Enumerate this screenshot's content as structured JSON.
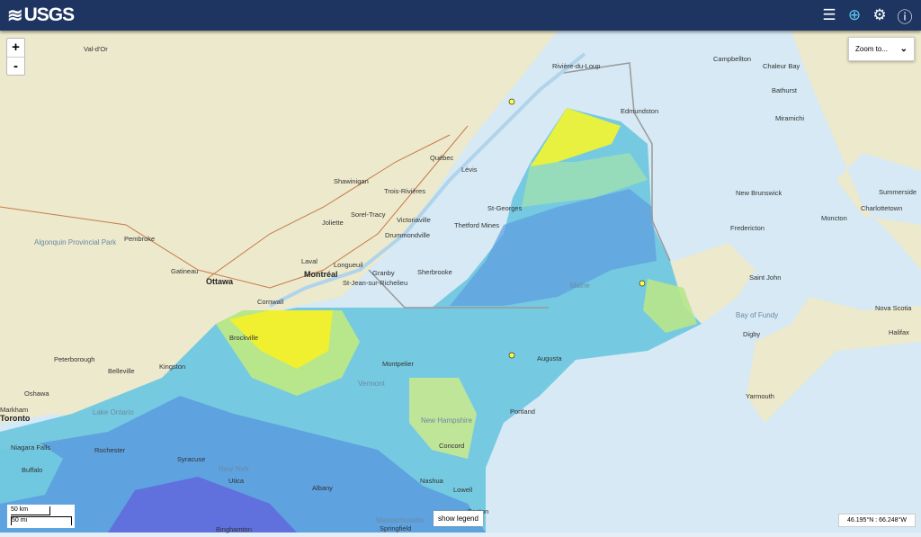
{
  "header": {
    "logo": "USGS",
    "icons": [
      "list-icon",
      "globe-icon",
      "gear-icon",
      "help-icon"
    ]
  },
  "controls": {
    "zoom_in": "+",
    "zoom_out": "-",
    "zoom_to": "Zoom to...",
    "show_legend": "show legend",
    "scale_km": "50 km",
    "scale_mi": "50 mi",
    "coords": "46.195°N : 66.248°W"
  },
  "colors": {
    "land": "#ece9cc",
    "water": "#d6e9f4",
    "yellow": "#f0f030",
    "green": "#b4e48a",
    "cyan": "#78d4e0",
    "blue": "#60a0e0",
    "purple": "#6070e0"
  },
  "labels": [
    "Val-d'Or",
    "Rivière-du-Loup",
    "Campbellton",
    "Chaleur Bay",
    "Bathurst",
    "Edmundston",
    "Miramichi",
    "Québec",
    "Lévis",
    "Shawinigan",
    "Trois-Rivières",
    "New Brunswick",
    "Summerside",
    "Charlottetown",
    "Sorel-Tracy",
    "Joliette",
    "Victoriaville",
    "Thetford Mines",
    "St-Georges",
    "Fredericton",
    "Moncton",
    "Pembroke",
    "Drummondville",
    "Laval",
    "Longueuil",
    "Gatineau",
    "Ottawa",
    "Montréal",
    "Granby",
    "Sherbrooke",
    "St-Jean-sur-Richelieu",
    "Saint John",
    "Cornwall",
    "Maine",
    "Bay of Fundy",
    "Nova Scotia",
    "Halifax",
    "Digby",
    "Brockville",
    "Peterborough",
    "Belleville",
    "Kingston",
    "Montpelier",
    "Augusta",
    "Oshawa",
    "Markham",
    "Toronto",
    "Lake Ontario",
    "Portland",
    "Yarmouth",
    "Niagara Falls",
    "Rochester",
    "Buffalo",
    "Syracuse",
    "Utica",
    "New York",
    "Concord",
    "Albany",
    "Nashua",
    "Lowell",
    "Boston",
    "Massachusetts",
    "Springfield",
    "Binghamton",
    "Algonquin Provincial Park",
    "Vermont",
    "New Hampshire"
  ]
}
